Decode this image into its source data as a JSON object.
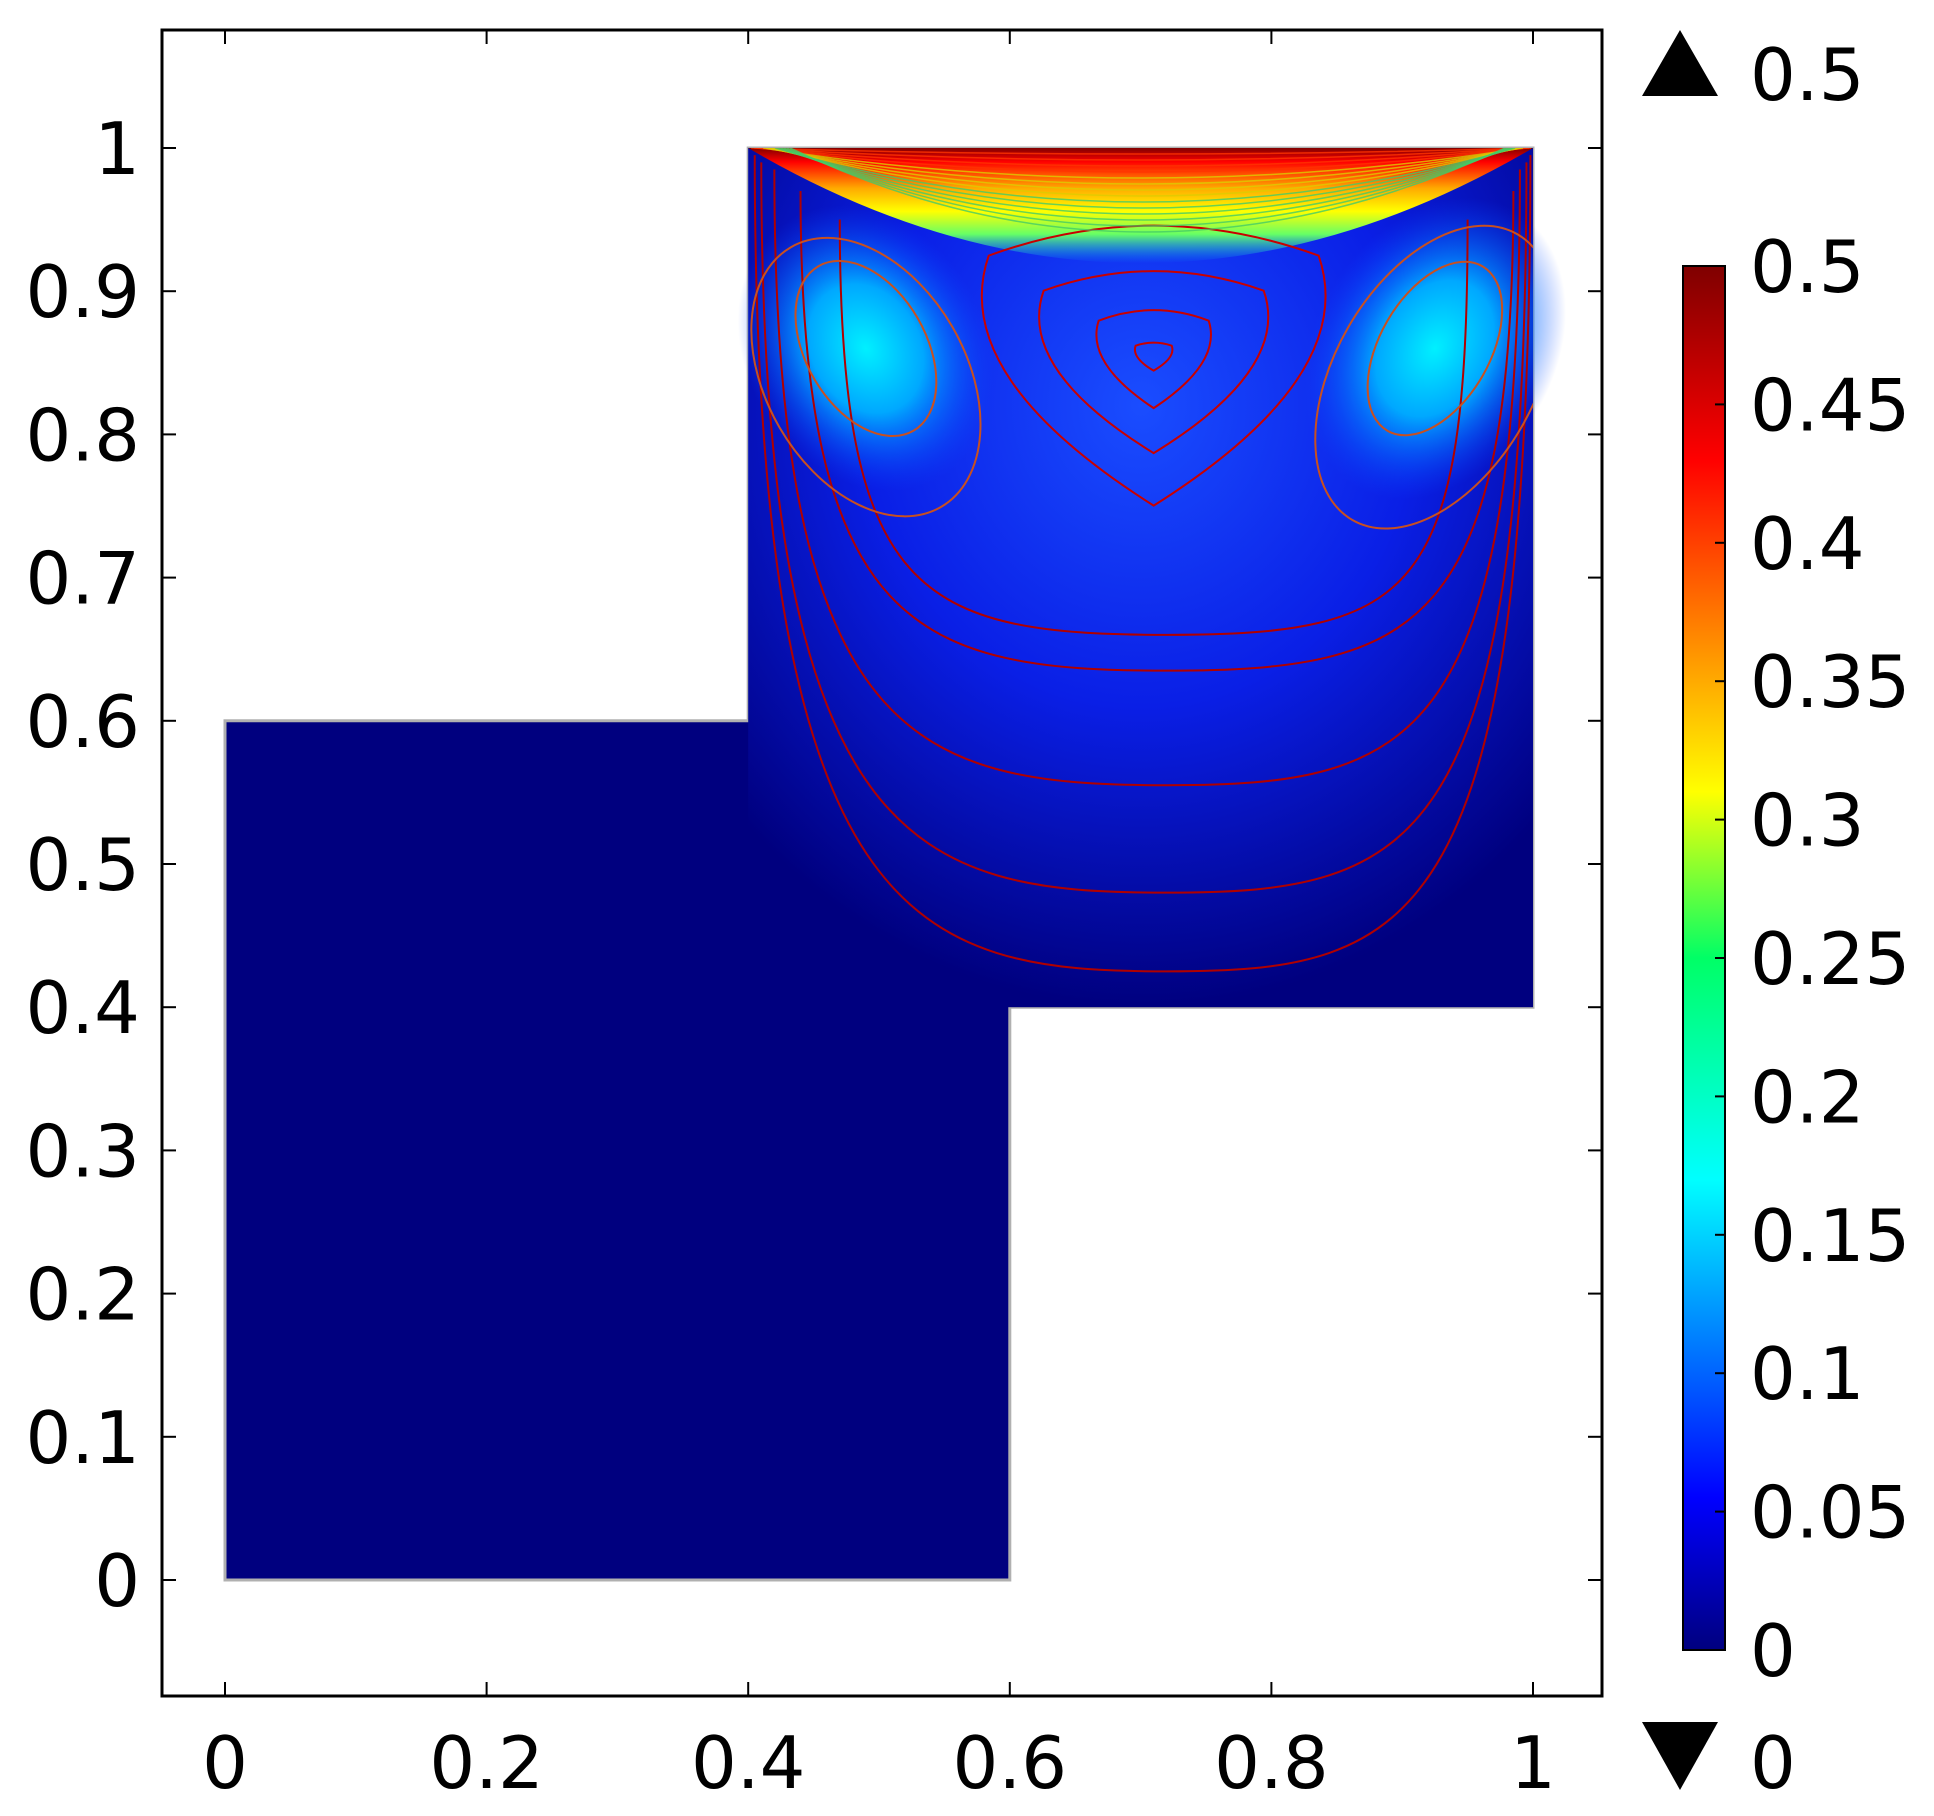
{
  "chart_data": {
    "type": "heatmap",
    "title": "",
    "xlabel": "",
    "ylabel": "",
    "xlim": [
      -0.08,
      1.05
    ],
    "ylim": [
      -0.08,
      1.08
    ],
    "x_ticks": [
      0,
      0.2,
      0.4,
      0.6,
      0.8,
      1
    ],
    "x_tick_labels": [
      "0",
      "0.2",
      "0.4",
      "0.6",
      "0.8",
      "1"
    ],
    "y_ticks": [
      0,
      0.1,
      0.2,
      0.3,
      0.4,
      0.5,
      0.6,
      0.7,
      0.8,
      0.9,
      1
    ],
    "y_tick_labels": [
      "0",
      "0.1",
      "0.2",
      "0.3",
      "0.4",
      "0.5",
      "0.6",
      "0.7",
      "0.8",
      "0.9",
      "1"
    ],
    "domain_polygon": [
      [
        0,
        0
      ],
      [
        0.6,
        0
      ],
      [
        0.6,
        0.4
      ],
      [
        1,
        0.4
      ],
      [
        1,
        1
      ],
      [
        0.4,
        1
      ],
      [
        0.4,
        0.6
      ],
      [
        0,
        0.6
      ]
    ],
    "field_range": [
      0,
      0.5
    ],
    "lid": {
      "y": 1,
      "x_range": [
        0.4,
        1
      ],
      "max_value": 0.5
    },
    "primary_vortex_center": [
      0.71,
      0.855
    ],
    "secondary_vortex_centers": [
      [
        0.45,
        0.87
      ],
      [
        0.94,
        0.87
      ]
    ],
    "contour_levels": [
      0.01,
      0.02,
      0.03,
      0.04,
      0.05,
      0.06,
      0.07,
      0.08,
      0.09,
      0.1,
      0.12,
      0.14,
      0.16
    ],
    "colorbar": {
      "colormap": "jet",
      "min": 0,
      "max": 0.5,
      "tick_values": [
        0,
        0.05,
        0.1,
        0.15,
        0.2,
        0.25,
        0.3,
        0.35,
        0.4,
        0.45,
        0.5
      ],
      "tick_labels": [
        "0",
        "0.05",
        "0.1",
        "0.15",
        "0.2",
        "0.25",
        "0.3",
        "0.35",
        "0.4",
        "0.45",
        "0.5"
      ],
      "max_indicator": "0.5",
      "min_indicator": "0"
    },
    "grid": false,
    "legend": "colorbar-right"
  }
}
